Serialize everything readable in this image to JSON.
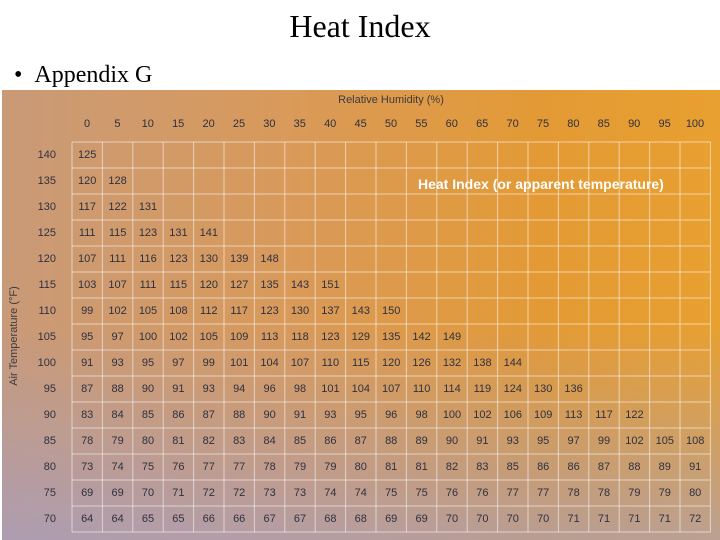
{
  "title": "Heat Index",
  "bullet": "Appendix G",
  "chart": {
    "x_label": "Relative Humidity (%)",
    "y_label": "Air Temperature (°F)",
    "overlay_label": "Heat Index (or apparent temperature)",
    "humidity": [
      "0",
      "5",
      "10",
      "15",
      "20",
      "25",
      "30",
      "35",
      "40",
      "45",
      "50",
      "55",
      "60",
      "65",
      "70",
      "75",
      "80",
      "85",
      "90",
      "95",
      "100"
    ],
    "rows": [
      {
        "temp": "140",
        "values": [
          "125"
        ]
      },
      {
        "temp": "135",
        "values": [
          "120",
          "128"
        ]
      },
      {
        "temp": "130",
        "values": [
          "117",
          "122",
          "131"
        ]
      },
      {
        "temp": "125",
        "values": [
          "111",
          "115",
          "123",
          "131",
          "141"
        ]
      },
      {
        "temp": "120",
        "values": [
          "107",
          "111",
          "116",
          "123",
          "130",
          "139",
          "148"
        ]
      },
      {
        "temp": "115",
        "values": [
          "103",
          "107",
          "111",
          "115",
          "120",
          "127",
          "135",
          "143",
          "151"
        ]
      },
      {
        "temp": "110",
        "values": [
          "99",
          "102",
          "105",
          "108",
          "112",
          "117",
          "123",
          "130",
          "137",
          "143",
          "150"
        ]
      },
      {
        "temp": "105",
        "values": [
          "95",
          "97",
          "100",
          "102",
          "105",
          "109",
          "113",
          "118",
          "123",
          "129",
          "135",
          "142",
          "149"
        ]
      },
      {
        "temp": "100",
        "values": [
          "91",
          "93",
          "95",
          "97",
          "99",
          "101",
          "104",
          "107",
          "110",
          "115",
          "120",
          "126",
          "132",
          "138",
          "144"
        ]
      },
      {
        "temp": "95",
        "values": [
          "87",
          "88",
          "90",
          "91",
          "93",
          "94",
          "96",
          "98",
          "101",
          "104",
          "107",
          "110",
          "114",
          "119",
          "124",
          "130",
          "136"
        ]
      },
      {
        "temp": "90",
        "values": [
          "83",
          "84",
          "85",
          "86",
          "87",
          "88",
          "90",
          "91",
          "93",
          "95",
          "96",
          "98",
          "100",
          "102",
          "106",
          "109",
          "113",
          "117",
          "122"
        ]
      },
      {
        "temp": "85",
        "values": [
          "78",
          "79",
          "80",
          "81",
          "82",
          "83",
          "84",
          "85",
          "86",
          "87",
          "88",
          "89",
          "90",
          "91",
          "93",
          "95",
          "97",
          "99",
          "102",
          "105",
          "108"
        ]
      },
      {
        "temp": "80",
        "values": [
          "73",
          "74",
          "75",
          "76",
          "77",
          "77",
          "78",
          "79",
          "79",
          "80",
          "81",
          "81",
          "82",
          "83",
          "85",
          "86",
          "86",
          "87",
          "88",
          "89",
          "91"
        ]
      },
      {
        "temp": "75",
        "values": [
          "69",
          "69",
          "70",
          "71",
          "72",
          "72",
          "73",
          "73",
          "74",
          "74",
          "75",
          "75",
          "76",
          "76",
          "77",
          "77",
          "78",
          "78",
          "79",
          "79",
          "80"
        ]
      },
      {
        "temp": "70",
        "values": [
          "64",
          "64",
          "65",
          "65",
          "66",
          "66",
          "67",
          "67",
          "68",
          "68",
          "69",
          "69",
          "70",
          "70",
          "70",
          "70",
          "71",
          "71",
          "71",
          "71",
          "72"
        ]
      }
    ]
  }
}
